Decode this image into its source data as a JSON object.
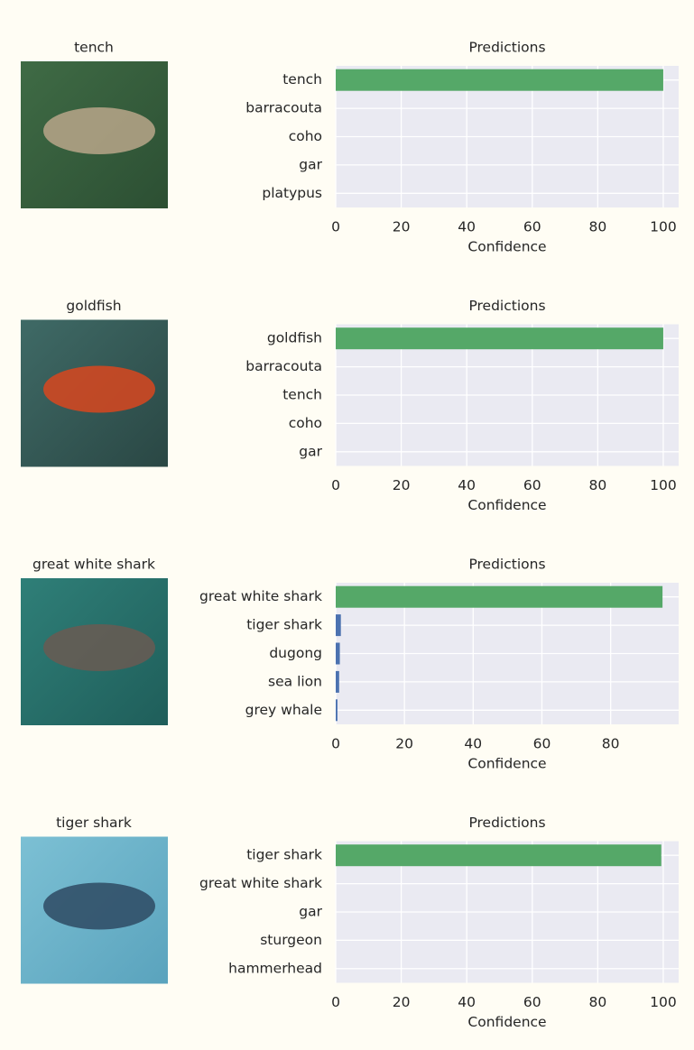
{
  "chart_data": [
    {
      "type": "bar",
      "orientation": "horizontal",
      "image_label": "tench",
      "title": "Predictions",
      "x_label": "Confidence",
      "categories": [
        "tench",
        "barracouta",
        "coho",
        "gar",
        "platypus"
      ],
      "values": [
        100,
        0,
        0,
        0,
        0
      ],
      "colors": [
        "#55a868",
        "#4c72b0",
        "#4c72b0",
        "#4c72b0",
        "#4c72b0"
      ],
      "xlim": [
        0,
        104.7
      ],
      "xticks": [
        0,
        20,
        40,
        60,
        80,
        100
      ],
      "grid": true
    },
    {
      "type": "bar",
      "orientation": "horizontal",
      "image_label": "goldfish",
      "title": "Predictions",
      "x_label": "Confidence",
      "categories": [
        "goldfish",
        "barracouta",
        "tench",
        "coho",
        "gar"
      ],
      "values": [
        100,
        0,
        0,
        0,
        0
      ],
      "colors": [
        "#55a868",
        "#4c72b0",
        "#4c72b0",
        "#4c72b0",
        "#4c72b0"
      ],
      "xlim": [
        0,
        104.7
      ],
      "xticks": [
        0,
        20,
        40,
        60,
        80,
        100
      ],
      "grid": true
    },
    {
      "type": "bar",
      "orientation": "horizontal",
      "image_label": "great white shark",
      "title": "Predictions",
      "x_label": "Confidence",
      "categories": [
        "great white shark",
        "tiger shark",
        "dugong",
        "sea lion",
        "grey whale"
      ],
      "values": [
        95.1,
        1.5,
        1.2,
        1,
        0.5
      ],
      "colors": [
        "#55a868",
        "#4c72b0",
        "#4c72b0",
        "#4c72b0",
        "#4c72b0"
      ],
      "xlim": [
        0,
        99.8
      ],
      "xticks": [
        0,
        20,
        40,
        60,
        80
      ],
      "grid": true
    },
    {
      "type": "bar",
      "orientation": "horizontal",
      "image_label": "tiger shark",
      "title": "Predictions",
      "x_label": "Confidence",
      "categories": [
        "tiger shark",
        "great white shark",
        "gar",
        "sturgeon",
        "hammerhead"
      ],
      "values": [
        99.4,
        0,
        0,
        0,
        0
      ],
      "colors": [
        "#55a868",
        "#4c72b0",
        "#4c72b0",
        "#4c72b0",
        "#4c72b0"
      ],
      "xlim": [
        0,
        104.7
      ],
      "xticks": [
        0,
        20,
        40,
        60,
        80,
        100
      ],
      "grid": true
    }
  ]
}
